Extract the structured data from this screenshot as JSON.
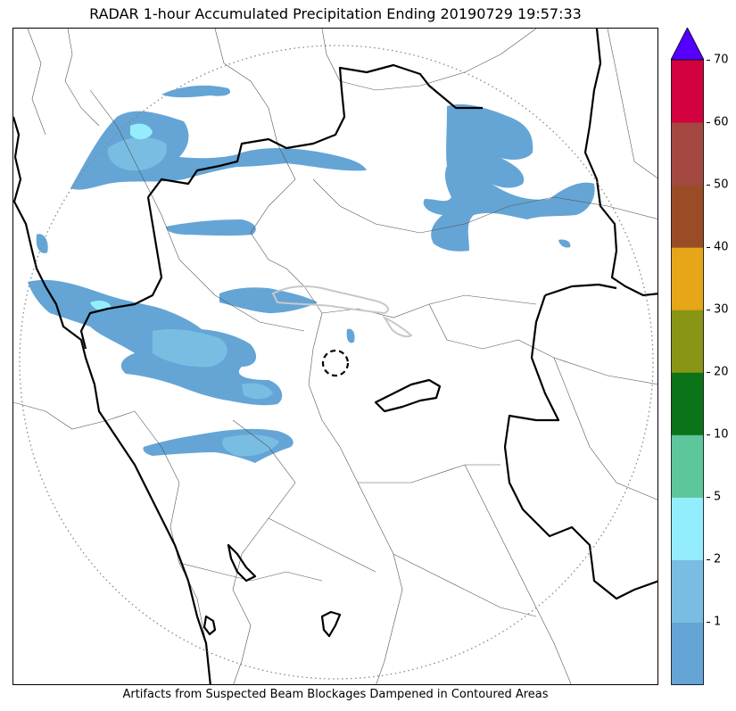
{
  "title": "RADAR 1-hour Accumulated Precipitation Ending 20190729 19:57:33",
  "caption": "Artifacts from Suspected Beam Blockages Dampened in Contoured Areas",
  "colorbar": {
    "labels": [
      "1",
      "2",
      "5",
      "10",
      "20",
      "30",
      "40",
      "50",
      "60",
      "70"
    ],
    "colors": [
      "#64a5d6",
      "#79bde3",
      "#94edfc",
      "#5dc69a",
      "#0c7418",
      "#889515",
      "#e6a617",
      "#994c26",
      "#a44842",
      "#d3013f"
    ],
    "extend_color": "#5500ff",
    "range": [
      0,
      70
    ]
  },
  "map": {
    "radar_site_icon": "dashed-circle",
    "range_ring_icon": "dotted-circle",
    "precip_colors": {
      "light": "#64a5d6",
      "moderate": "#79bde3",
      "heavy": "#94edfc"
    },
    "blockage_contour_color": "#c8c8c8"
  }
}
